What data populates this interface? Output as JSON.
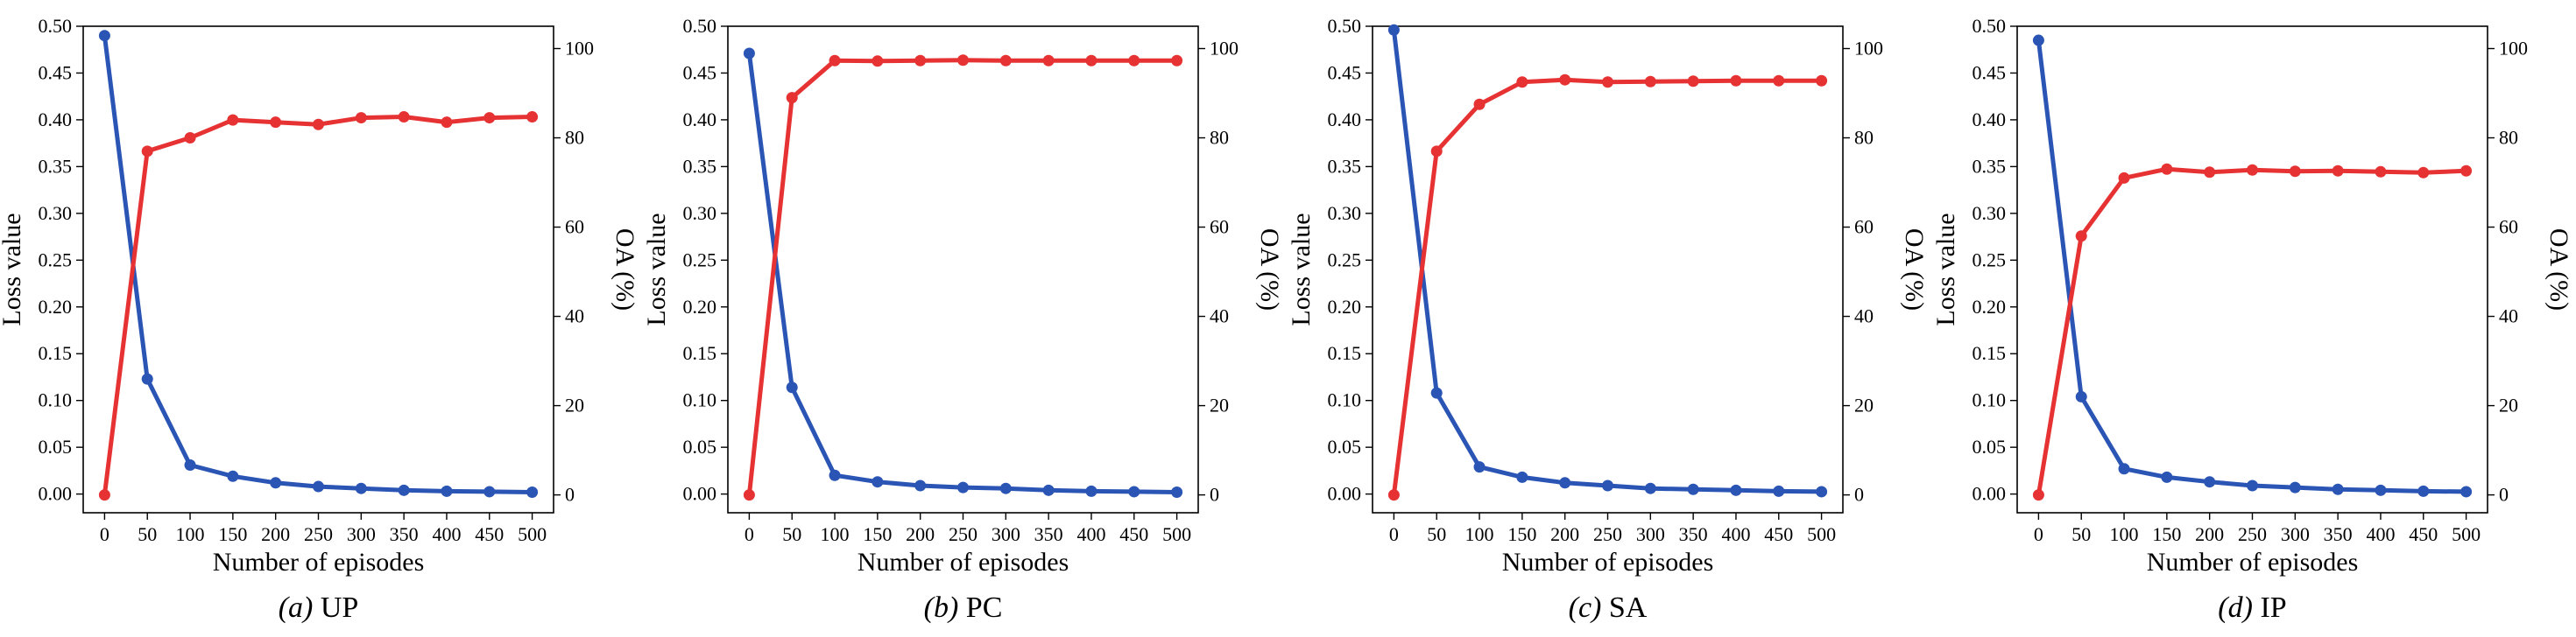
{
  "chart_data": [
    {
      "type": "line",
      "caption_letter": "(a)",
      "caption_label": "UP",
      "xlabel": "Number of episodes",
      "ylabel_left": "Loss value",
      "ylabel_right": "OA (%)",
      "x": [
        0,
        50,
        100,
        150,
        200,
        250,
        300,
        350,
        400,
        450,
        500
      ],
      "xlim": [
        -25,
        525
      ],
      "ylim_left": [
        -0.02,
        0.5
      ],
      "ylim_right": [
        -4,
        105
      ],
      "xticks": [
        "0",
        "50",
        "100",
        "150",
        "200",
        "250",
        "300",
        "350",
        "400",
        "450",
        "500"
      ],
      "yticks_left": [
        "0.00",
        "0.05",
        "0.10",
        "0.15",
        "0.20",
        "0.25",
        "0.30",
        "0.35",
        "0.40",
        "0.45",
        "0.50"
      ],
      "yticks_right": [
        "0",
        "20",
        "40",
        "60",
        "80",
        "100"
      ],
      "series": [
        {
          "name": "Loss value",
          "axis": "left",
          "color": "#2b55b5",
          "values": [
            0.49,
            0.123,
            0.031,
            0.019,
            0.012,
            0.008,
            0.006,
            0.004,
            0.003,
            0.0025,
            0.002
          ]
        },
        {
          "name": "OA (%)",
          "axis": "right",
          "color": "#e63232",
          "values": [
            0,
            77,
            80,
            84,
            83.5,
            83,
            84.5,
            84.7,
            83.5,
            84.5,
            84.7
          ]
        }
      ]
    },
    {
      "type": "line",
      "caption_letter": "(b)",
      "caption_label": "PC",
      "xlabel": "Number of episodes",
      "ylabel_left": "Loss value",
      "ylabel_right": "OA (%)",
      "x": [
        0,
        50,
        100,
        150,
        200,
        250,
        300,
        350,
        400,
        450,
        500
      ],
      "xlim": [
        -25,
        525
      ],
      "ylim_left": [
        -0.02,
        0.5
      ],
      "ylim_right": [
        -4,
        105
      ],
      "xticks": [
        "0",
        "50",
        "100",
        "150",
        "200",
        "250",
        "300",
        "350",
        "400",
        "450",
        "500"
      ],
      "yticks_left": [
        "0.00",
        "0.05",
        "0.10",
        "0.15",
        "0.20",
        "0.25",
        "0.30",
        "0.35",
        "0.40",
        "0.45",
        "0.50"
      ],
      "yticks_right": [
        "0",
        "20",
        "40",
        "60",
        "80",
        "100"
      ],
      "series": [
        {
          "name": "Loss value",
          "axis": "left",
          "color": "#2b55b5",
          "values": [
            0.471,
            0.114,
            0.02,
            0.013,
            0.009,
            0.007,
            0.006,
            0.004,
            0.003,
            0.0025,
            0.002
          ]
        },
        {
          "name": "OA (%)",
          "axis": "right",
          "color": "#e63232",
          "values": [
            0,
            89,
            97.3,
            97.2,
            97.3,
            97.4,
            97.3,
            97.3,
            97.3,
            97.3,
            97.3
          ]
        }
      ]
    },
    {
      "type": "line",
      "caption_letter": "(c)",
      "caption_label": "SA",
      "xlabel": "Number of episodes",
      "ylabel_left": "Loss value",
      "ylabel_right": "OA (%)",
      "x": [
        0,
        50,
        100,
        150,
        200,
        250,
        300,
        350,
        400,
        450,
        500
      ],
      "xlim": [
        -25,
        525
      ],
      "ylim_left": [
        -0.02,
        0.5
      ],
      "ylim_right": [
        -4,
        105
      ],
      "xticks": [
        "0",
        "50",
        "100",
        "150",
        "200",
        "250",
        "300",
        "350",
        "400",
        "450",
        "500"
      ],
      "yticks_left": [
        "0.00",
        "0.05",
        "0.10",
        "0.15",
        "0.20",
        "0.25",
        "0.30",
        "0.35",
        "0.40",
        "0.45",
        "0.50"
      ],
      "yticks_right": [
        "0",
        "20",
        "40",
        "60",
        "80",
        "100"
      ],
      "series": [
        {
          "name": "Loss value",
          "axis": "left",
          "color": "#2b55b5",
          "values": [
            0.496,
            0.108,
            0.029,
            0.018,
            0.012,
            0.009,
            0.006,
            0.005,
            0.004,
            0.003,
            0.0025
          ]
        },
        {
          "name": "OA (%)",
          "axis": "right",
          "color": "#e63232",
          "values": [
            0,
            77,
            87.5,
            92.5,
            93,
            92.5,
            92.6,
            92.7,
            92.8,
            92.8,
            92.8
          ]
        }
      ]
    },
    {
      "type": "line",
      "caption_letter": "(d)",
      "caption_label": "IP",
      "xlabel": "Number of episodes",
      "ylabel_left": "Loss value",
      "ylabel_right": "OA (%)",
      "x": [
        0,
        50,
        100,
        150,
        200,
        250,
        300,
        350,
        400,
        450,
        500
      ],
      "xlim": [
        -25,
        525
      ],
      "ylim_left": [
        -0.02,
        0.5
      ],
      "ylim_right": [
        -4,
        105
      ],
      "xticks": [
        "0",
        "50",
        "100",
        "150",
        "200",
        "250",
        "300",
        "350",
        "400",
        "450",
        "500"
      ],
      "yticks_left": [
        "0.00",
        "0.05",
        "0.10",
        "0.15",
        "0.20",
        "0.25",
        "0.30",
        "0.35",
        "0.40",
        "0.45",
        "0.50"
      ],
      "yticks_right": [
        "0",
        "20",
        "40",
        "60",
        "80",
        "100"
      ],
      "series": [
        {
          "name": "Loss value",
          "axis": "left",
          "color": "#2b55b5",
          "values": [
            0.485,
            0.104,
            0.027,
            0.018,
            0.013,
            0.009,
            0.007,
            0.005,
            0.004,
            0.003,
            0.0025
          ]
        },
        {
          "name": "OA (%)",
          "axis": "right",
          "color": "#e63232",
          "values": [
            0,
            58,
            71,
            73,
            72.3,
            72.8,
            72.5,
            72.6,
            72.4,
            72.2,
            72.6
          ]
        }
      ]
    }
  ]
}
